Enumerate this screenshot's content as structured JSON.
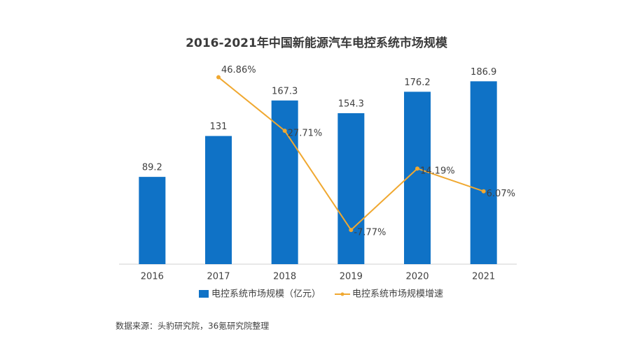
{
  "chart_data": {
    "type": "bar",
    "title": "2016-2021年中国新能源汽车电控系统市场规模",
    "categories": [
      "2016",
      "2017",
      "2018",
      "2019",
      "2020",
      "2021"
    ],
    "series": [
      {
        "name": "电控系统市场规模（亿元）",
        "type": "bar",
        "color": "#0f72c6",
        "values": [
          89.2,
          131,
          167.3,
          154.3,
          176.2,
          186.9
        ]
      },
      {
        "name": "电控系统市场规模增速",
        "type": "line",
        "axis": "y2",
        "color": "#f0a830",
        "values": [
          null,
          46.86,
          27.71,
          -7.77,
          14.19,
          6.07
        ],
        "value_labels": [
          null,
          "46.86%",
          "27.71%",
          "-7.77%",
          "14.19%",
          "6.07%"
        ]
      }
    ],
    "ylim": [
      0,
      200
    ],
    "y2lim": [
      -20,
      50
    ],
    "legend": "bottom",
    "source": "数据来源：头豹研究院，36氪研究院整理"
  }
}
